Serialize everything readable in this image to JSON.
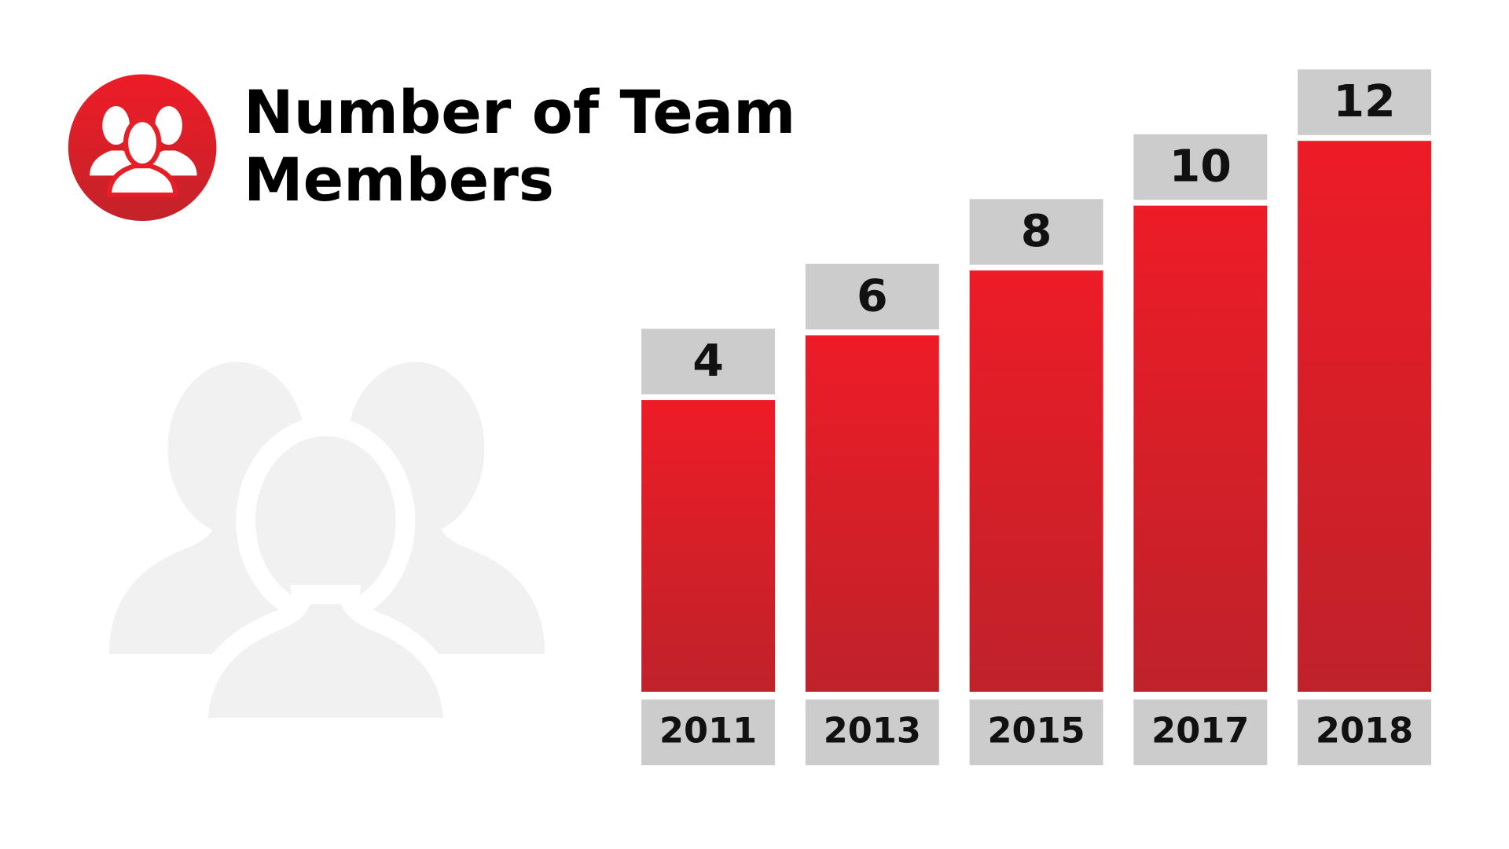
{
  "chart_data": {
    "type": "bar",
    "title": "Number of Team Members",
    "categories": [
      "2011",
      "2013",
      "2015",
      "2017",
      "2018"
    ],
    "values": [
      4,
      6,
      8,
      10,
      12
    ],
    "color": "#e81e26",
    "ylim": [
      -5,
      12
    ]
  }
}
